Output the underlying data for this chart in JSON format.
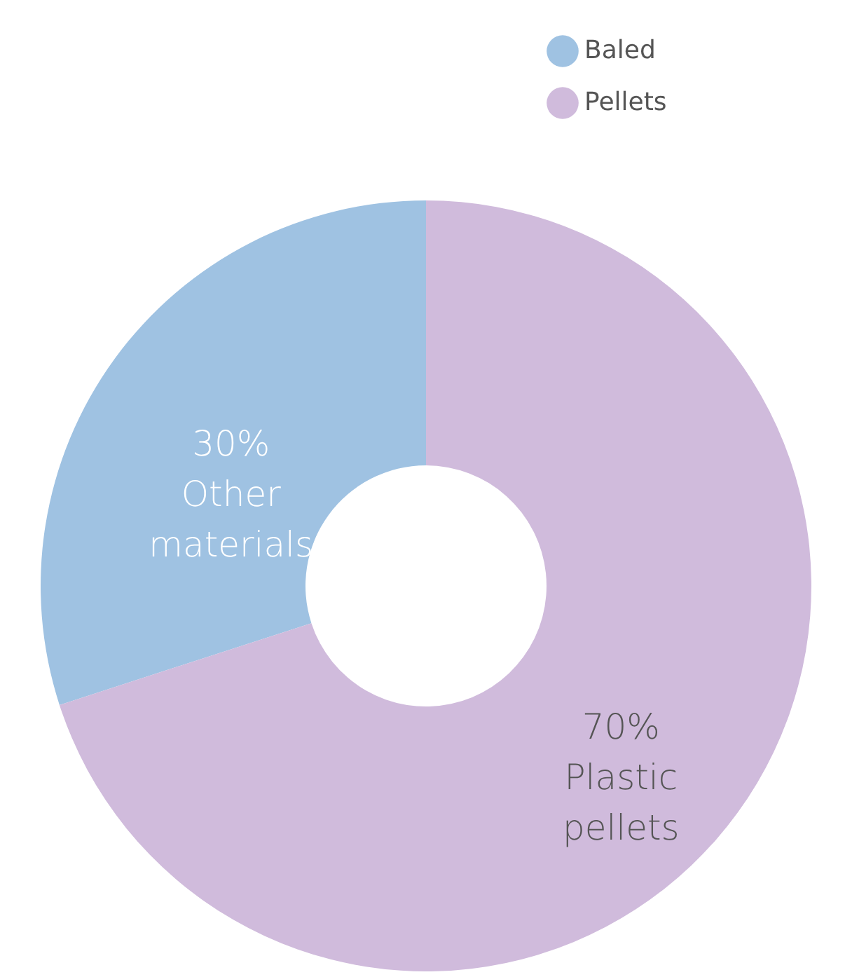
{
  "chart_data": {
    "type": "donut",
    "categories": [
      "Baled",
      "Pellets"
    ],
    "values": [
      30,
      70
    ],
    "colors": [
      "#9fc2e2",
      "#d0bbdc"
    ],
    "value_labels": [
      "30%\nOther\nmaterials",
      "70%\nPlastic\npellets"
    ],
    "legend": "top right"
  }
}
